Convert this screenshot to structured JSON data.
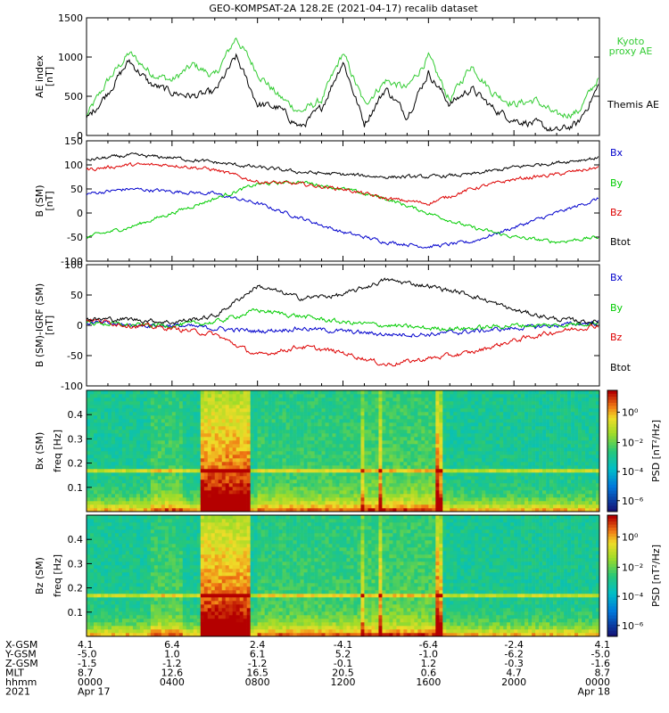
{
  "title": "GEO-KOMPSAT-2A 128.2E (2021-04-17) recalib dataset",
  "colors": {
    "Bx": "#0000cc",
    "By": "#00cc00",
    "Bz": "#dd0000",
    "Btot": "#000000",
    "kyoto": "#33cc33"
  },
  "chart_data": [
    {
      "type": "line",
      "panel": "AE index",
      "ylabel": "AE index [nT]",
      "ylim": [
        0,
        1500
      ],
      "yticks": [
        "0",
        "500",
        "1000",
        "1500"
      ],
      "grid": false,
      "series": [
        {
          "name": "Kyoto proxy AE",
          "color": "#33cc33",
          "x": [
            0,
            1,
            2,
            3,
            4,
            5,
            6,
            7,
            8,
            9,
            10,
            11,
            12,
            13,
            14,
            15,
            16,
            17,
            18,
            19,
            20,
            21,
            22,
            23,
            24
          ],
          "values": [
            250,
            700,
            1050,
            800,
            700,
            900,
            750,
            1250,
            800,
            500,
            300,
            450,
            1050,
            400,
            700,
            600,
            1000,
            450,
            900,
            550,
            400,
            450,
            250,
            300,
            750
          ]
        },
        {
          "name": "Themis AE",
          "color": "#000000",
          "x": [
            0,
            1,
            2,
            3,
            4,
            5,
            6,
            7,
            8,
            9,
            10,
            11,
            12,
            13,
            14,
            15,
            16,
            17,
            18,
            19,
            20,
            21,
            22,
            23,
            24
          ],
          "values": [
            200,
            550,
            950,
            650,
            550,
            500,
            550,
            1000,
            400,
            350,
            100,
            350,
            950,
            150,
            600,
            250,
            800,
            400,
            600,
            350,
            200,
            150,
            50,
            150,
            650
          ]
        }
      ]
    },
    {
      "type": "line",
      "panel": "B (SM)",
      "ylabel": "B (SM) [nT]",
      "ylim": [
        -100,
        150
      ],
      "yticks": [
        "-100",
        "-50",
        "0",
        "50",
        "100",
        "150"
      ],
      "grid": false,
      "series": [
        {
          "name": "Bx",
          "color": "#0000cc",
          "x": [
            0,
            2,
            4,
            6,
            8,
            10,
            12,
            14,
            16,
            18,
            20,
            22,
            24
          ],
          "values": [
            40,
            50,
            45,
            40,
            20,
            -10,
            -40,
            -60,
            -70,
            -60,
            -30,
            0,
            30
          ]
        },
        {
          "name": "By",
          "color": "#00cc00",
          "x": [
            0,
            2,
            4,
            6,
            8,
            10,
            12,
            14,
            16,
            18,
            20,
            22,
            24
          ],
          "values": [
            -50,
            -30,
            0,
            30,
            60,
            65,
            50,
            30,
            0,
            -30,
            -50,
            -60,
            -50
          ]
        },
        {
          "name": "Bz",
          "color": "#dd0000",
          "x": [
            0,
            2,
            4,
            6,
            8,
            10,
            12,
            14,
            16,
            18,
            20,
            22,
            24
          ],
          "values": [
            90,
            100,
            100,
            90,
            65,
            60,
            50,
            30,
            20,
            50,
            70,
            80,
            95
          ]
        },
        {
          "name": "Btot",
          "color": "#000000",
          "x": [
            0,
            2,
            4,
            6,
            8,
            10,
            12,
            14,
            16,
            18,
            20,
            22,
            24
          ],
          "values": [
            110,
            120,
            115,
            105,
            95,
            85,
            80,
            75,
            75,
            80,
            95,
            105,
            115
          ]
        }
      ]
    },
    {
      "type": "line",
      "panel": "B (SM)-IGRF (SM)",
      "ylabel": "B (SM)-IGRF (SM) [nT]",
      "ylim": [
        -100,
        100
      ],
      "yticks": [
        "-100",
        "-50",
        "0",
        "50",
        "100"
      ],
      "grid": false,
      "series": [
        {
          "name": "Bx",
          "color": "#0000cc",
          "x": [
            0,
            2,
            4,
            6,
            8,
            10,
            12,
            14,
            16,
            18,
            20,
            22,
            24
          ],
          "values": [
            5,
            0,
            0,
            -5,
            -10,
            -5,
            -10,
            -15,
            -15,
            -10,
            -5,
            0,
            5
          ]
        },
        {
          "name": "By",
          "color": "#00cc00",
          "x": [
            0,
            2,
            4,
            6,
            8,
            10,
            12,
            14,
            16,
            18,
            20,
            22,
            24
          ],
          "values": [
            5,
            0,
            0,
            5,
            25,
            15,
            5,
            0,
            -5,
            -5,
            0,
            0,
            5
          ]
        },
        {
          "name": "Bz",
          "color": "#dd0000",
          "x": [
            0,
            2,
            4,
            6,
            8,
            10,
            12,
            14,
            16,
            18,
            20,
            22,
            24
          ],
          "values": [
            10,
            0,
            -5,
            -15,
            -50,
            -35,
            -45,
            -65,
            -55,
            -45,
            -25,
            -10,
            0
          ]
        },
        {
          "name": "Btot",
          "color": "#000000",
          "x": [
            0,
            2,
            4,
            6,
            8,
            10,
            12,
            14,
            16,
            18,
            20,
            22,
            24
          ],
          "values": [
            10,
            10,
            5,
            15,
            65,
            45,
            50,
            75,
            65,
            50,
            25,
            10,
            5
          ]
        }
      ]
    },
    {
      "type": "heatmap",
      "panel": "Bx (SM)",
      "ylabel": "Bx (SM) freq [Hz]",
      "ylim": [
        0,
        0.5
      ],
      "yticks": [
        "0.1",
        "0.2",
        "0.3",
        "0.4"
      ],
      "colorbar": {
        "label": "PSD [nT²/Hz]",
        "ticks": [
          "10⁰",
          "10⁻²",
          "10⁻⁴",
          "10⁻⁶"
        ]
      }
    },
    {
      "type": "heatmap",
      "panel": "Bz (SM)",
      "ylabel": "Bz (SM) freq [Hz]",
      "ylim": [
        0,
        0.5
      ],
      "yticks": [
        "0.1",
        "0.2",
        "0.3",
        "0.4"
      ],
      "colorbar": {
        "label": "PSD [nT²/Hz]",
        "ticks": [
          "10⁰",
          "10⁻²",
          "10⁻⁴",
          "10⁻⁶"
        ]
      }
    }
  ],
  "ae_labels": {
    "kyoto": "Kyoto\nproxy AE",
    "themis": "Themis AE"
  },
  "legend_b": [
    "Bx",
    "By",
    "Bz",
    "Btot"
  ],
  "xaxis": {
    "rows": [
      {
        "label": "X-GSM",
        "values": [
          "4.1",
          "6.4",
          "2.4",
          "-4.1",
          "-6.4",
          "-2.4",
          "4.1"
        ]
      },
      {
        "label": "Y-GSM",
        "values": [
          "-5.0",
          "1.0",
          "6.1",
          "5.2",
          "-1.0",
          "-6.2",
          "-5.0"
        ]
      },
      {
        "label": "Z-GSM",
        "values": [
          "-1.5",
          "-1.2",
          "-1.2",
          "-0.1",
          "1.2",
          "-0.3",
          "-1.6"
        ]
      },
      {
        "label": "MLT",
        "values": [
          "8.7",
          "12.6",
          "16.5",
          "20.5",
          "0.6",
          "4.7",
          "8.7"
        ]
      },
      {
        "label": "hhmm",
        "values": [
          "0000",
          "0400",
          "0800",
          "1200",
          "1600",
          "2000",
          "0000"
        ]
      },
      {
        "label": "2021",
        "values": [
          "Apr 17",
          "",
          "",
          "",
          "",
          "",
          "Apr 18"
        ]
      }
    ]
  }
}
